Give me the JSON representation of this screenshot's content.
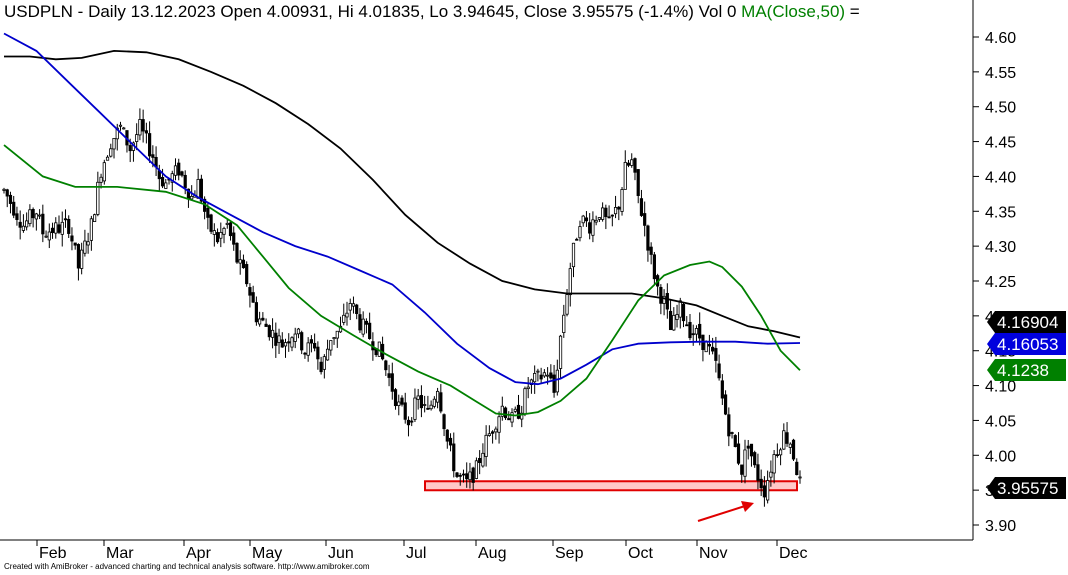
{
  "header": {
    "text": "USDPLN - Daily 13.12.2023 Open 4.00931, Hi 4.01835, Lo 3.94645, Close 3.95575 (-1.4%) Vol 0",
    "ma_text": "MA(Close,50)",
    "eq_text": " ="
  },
  "footer": "Created with AmiBroker - advanced charting and technical analysis software. http://www.amibroker.com",
  "colors": {
    "candle": "#000000",
    "ma50": "#008000",
    "ma100": "#0000cc",
    "ma200": "#000000",
    "support_fill": "#ffc8c8",
    "support_border": "#e00000",
    "arrow": "#e00000",
    "label_black": "#000000",
    "label_blue": "#0000dd",
    "label_green": "#008000"
  },
  "chart_data": {
    "type": "candlestick",
    "ylim": [
      3.88,
      4.62
    ],
    "yticks": [
      "4.60",
      "4.55",
      "4.50",
      "4.45",
      "4.40",
      "4.35",
      "4.30",
      "4.25",
      "4.20",
      "4.15",
      "4.10",
      "4.05",
      "4.00",
      "3.95",
      "3.90"
    ],
    "months": [
      "Feb",
      "Mar",
      "Apr",
      "May",
      "Jun",
      "Jul",
      "Aug",
      "Sep",
      "Oct",
      "Nov",
      "Dec"
    ],
    "price_path": [
      [
        0,
        4.38
      ],
      [
        6,
        4.33
      ],
      [
        10,
        4.35
      ],
      [
        12,
        4.32
      ],
      [
        20,
        4.33
      ],
      [
        23,
        4.27
      ],
      [
        27,
        4.33
      ],
      [
        30,
        4.41
      ],
      [
        33,
        4.45
      ],
      [
        36,
        4.47
      ],
      [
        39,
        4.44
      ],
      [
        42,
        4.47
      ],
      [
        46,
        4.43
      ],
      [
        48,
        4.4
      ],
      [
        50,
        4.39
      ],
      [
        54,
        4.41
      ],
      [
        56,
        4.39
      ],
      [
        58,
        4.37
      ],
      [
        60,
        4.39
      ],
      [
        63,
        4.33
      ],
      [
        66,
        4.31
      ],
      [
        69,
        4.33
      ],
      [
        72,
        4.28
      ],
      [
        75,
        4.25
      ],
      [
        78,
        4.2
      ],
      [
        82,
        4.18
      ],
      [
        86,
        4.16
      ],
      [
        90,
        4.18
      ],
      [
        93,
        4.15
      ],
      [
        96,
        4.16
      ],
      [
        98,
        4.12
      ],
      [
        101,
        4.17
      ],
      [
        104,
        4.18
      ],
      [
        107,
        4.22
      ],
      [
        110,
        4.19
      ],
      [
        113,
        4.17
      ],
      [
        116,
        4.15
      ],
      [
        119,
        4.11
      ],
      [
        122,
        4.07
      ],
      [
        125,
        4.05
      ],
      [
        128,
        4.08
      ],
      [
        131,
        4.06
      ],
      [
        134,
        4.1
      ],
      [
        137,
        4.02
      ],
      [
        140,
        3.97
      ],
      [
        143,
        3.96
      ],
      [
        146,
        3.98
      ],
      [
        148,
        4.01
      ],
      [
        151,
        4.04
      ],
      [
        154,
        4.07
      ],
      [
        157,
        4.05
      ],
      [
        160,
        4.07
      ],
      [
        162,
        4.1
      ],
      [
        165,
        4.11
      ],
      [
        168,
        4.12
      ],
      [
        170,
        4.09
      ],
      [
        172,
        4.17
      ],
      [
        175,
        4.27
      ],
      [
        178,
        4.34
      ],
      [
        181,
        4.33
      ],
      [
        184,
        4.35
      ],
      [
        187,
        4.33
      ],
      [
        190,
        4.36
      ],
      [
        192,
        4.41
      ],
      [
        194,
        4.42
      ],
      [
        196,
        4.37
      ],
      [
        198,
        4.33
      ],
      [
        200,
        4.28
      ],
      [
        202,
        4.24
      ],
      [
        204,
        4.22
      ],
      [
        206,
        4.18
      ],
      [
        209,
        4.21
      ],
      [
        212,
        4.18
      ],
      [
        215,
        4.17
      ],
      [
        218,
        4.15
      ],
      [
        220,
        4.13
      ],
      [
        222,
        4.08
      ],
      [
        224,
        4.04
      ],
      [
        226,
        4.01
      ],
      [
        228,
        3.98
      ],
      [
        230,
        4.02
      ],
      [
        232,
        3.98
      ],
      [
        235,
        3.95
      ],
      [
        238,
        4.0
      ],
      [
        241,
        4.03
      ],
      [
        243,
        4.02
      ],
      [
        245,
        3.98
      ],
      [
        246,
        3.96
      ]
    ],
    "ma50": [
      [
        0,
        4.445
      ],
      [
        12,
        4.4
      ],
      [
        22,
        4.385
      ],
      [
        35,
        4.385
      ],
      [
        50,
        4.378
      ],
      [
        62,
        4.36
      ],
      [
        72,
        4.33
      ],
      [
        80,
        4.285
      ],
      [
        88,
        4.24
      ],
      [
        98,
        4.2
      ],
      [
        108,
        4.172
      ],
      [
        118,
        4.145
      ],
      [
        128,
        4.12
      ],
      [
        138,
        4.1
      ],
      [
        146,
        4.077
      ],
      [
        152,
        4.06
      ],
      [
        158,
        4.057
      ],
      [
        165,
        4.062
      ],
      [
        172,
        4.078
      ],
      [
        180,
        4.11
      ],
      [
        188,
        4.165
      ],
      [
        196,
        4.222
      ],
      [
        204,
        4.258
      ],
      [
        212,
        4.273
      ],
      [
        218,
        4.278
      ],
      [
        222,
        4.27
      ],
      [
        228,
        4.242
      ],
      [
        234,
        4.2
      ],
      [
        240,
        4.15
      ],
      [
        246,
        4.122
      ]
    ],
    "ma100": [
      [
        0,
        4.605
      ],
      [
        10,
        4.58
      ],
      [
        20,
        4.535
      ],
      [
        30,
        4.49
      ],
      [
        40,
        4.445
      ],
      [
        50,
        4.4
      ],
      [
        60,
        4.37
      ],
      [
        70,
        4.345
      ],
      [
        80,
        4.32
      ],
      [
        90,
        4.3
      ],
      [
        100,
        4.285
      ],
      [
        110,
        4.265
      ],
      [
        120,
        4.245
      ],
      [
        130,
        4.205
      ],
      [
        140,
        4.16
      ],
      [
        150,
        4.125
      ],
      [
        158,
        4.105
      ],
      [
        165,
        4.102
      ],
      [
        172,
        4.11
      ],
      [
        180,
        4.13
      ],
      [
        188,
        4.152
      ],
      [
        196,
        4.16
      ],
      [
        206,
        4.162
      ],
      [
        216,
        4.163
      ],
      [
        226,
        4.163
      ],
      [
        236,
        4.16
      ],
      [
        246,
        4.161
      ]
    ],
    "ma200": [
      [
        0,
        4.572
      ],
      [
        8,
        4.572
      ],
      [
        16,
        4.568
      ],
      [
        24,
        4.57
      ],
      [
        34,
        4.58
      ],
      [
        44,
        4.578
      ],
      [
        54,
        4.568
      ],
      [
        64,
        4.55
      ],
      [
        74,
        4.53
      ],
      [
        84,
        4.505
      ],
      [
        94,
        4.475
      ],
      [
        104,
        4.44
      ],
      [
        114,
        4.395
      ],
      [
        124,
        4.345
      ],
      [
        134,
        4.305
      ],
      [
        144,
        4.275
      ],
      [
        154,
        4.25
      ],
      [
        164,
        4.238
      ],
      [
        174,
        4.232
      ],
      [
        184,
        4.232
      ],
      [
        194,
        4.232
      ],
      [
        204,
        4.225
      ],
      [
        214,
        4.215
      ],
      [
        222,
        4.2
      ],
      [
        230,
        4.185
      ],
      [
        238,
        4.178
      ],
      [
        246,
        4.169
      ]
    ],
    "last_values": {
      "ma200": "4.16904",
      "ma100": "4.16053",
      "ma50": "4.1238",
      "close": "3.95575"
    },
    "support_zone": {
      "from": 3.95,
      "to": 3.957
    }
  }
}
